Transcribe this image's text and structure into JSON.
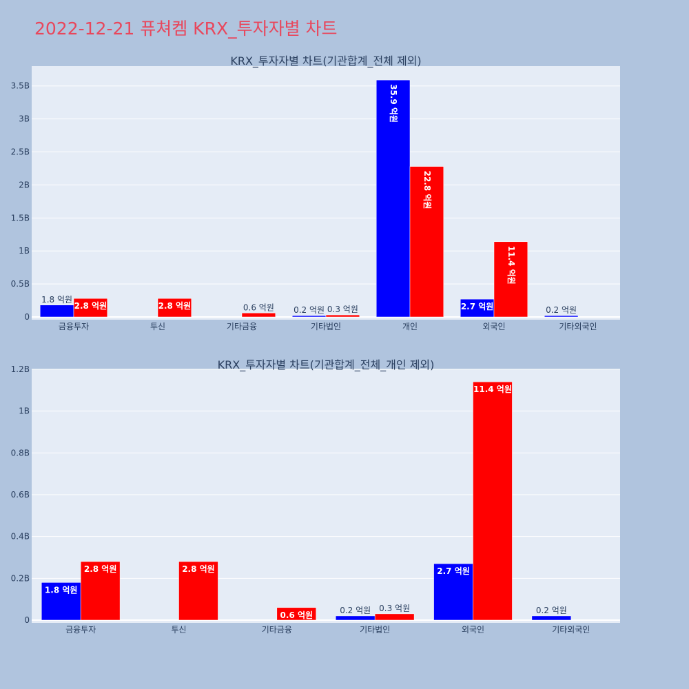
{
  "page_title": "2022-12-21 퓨쳐켐 KRX_투자자별 차트",
  "colors": {
    "background": "#b0c4de",
    "plot_bg": "#e5ecf6",
    "title": "#e8475c",
    "series_a": "#0000ff",
    "series_b": "#ff0000"
  },
  "chart_data": [
    {
      "type": "bar",
      "title": "KRX_투자자별 차트(기관합계_전체 제외)",
      "categories": [
        "금융투자",
        "투신",
        "기타금융",
        "기타법인",
        "개인",
        "외국인",
        "기타외국인"
      ],
      "ylim": [
        0,
        3.8
      ],
      "yticks": [
        0,
        0.5,
        1,
        1.5,
        2,
        2.5,
        3,
        3.5
      ],
      "ytick_labels": [
        "0",
        "0.5B",
        "1B",
        "1.5B",
        "2B",
        "2.5B",
        "3B",
        "3.5B"
      ],
      "grid": true,
      "series": [
        {
          "color": "#0000ff",
          "values": [
            0.18,
            null,
            null,
            0.02,
            3.59,
            0.27,
            0.02
          ],
          "labels": [
            "1.8 억원",
            "",
            "",
            "0.2 억원",
            "35.9 억원",
            "2.7 억원",
            "0.2 억원"
          ]
        },
        {
          "color": "#ff0000",
          "values": [
            0.28,
            0.28,
            0.06,
            0.03,
            2.28,
            1.14,
            null
          ],
          "labels": [
            "2.8 억원",
            "2.8 억원",
            "0.6 억원",
            "0.3 억원",
            "22.8 억원",
            "11.4 억원",
            ""
          ]
        }
      ]
    },
    {
      "type": "bar",
      "title": "KRX_투자자별 차트(기관합계_전체_개인 제외)",
      "categories": [
        "금융투자",
        "투신",
        "기타금융",
        "기타법인",
        "외국인",
        "기타외국인"
      ],
      "ylim": [
        0,
        1.2
      ],
      "yticks": [
        0,
        0.2,
        0.4,
        0.6,
        0.8,
        1,
        1.2
      ],
      "ytick_labels": [
        "0",
        "0.2B",
        "0.4B",
        "0.6B",
        "0.8B",
        "1B",
        "1.2B"
      ],
      "grid": true,
      "series": [
        {
          "color": "#0000ff",
          "values": [
            0.18,
            null,
            null,
            0.02,
            0.27,
            0.02
          ],
          "labels": [
            "1.8 억원",
            "",
            "",
            "0.2 억원",
            "2.7 억원",
            "0.2 억원"
          ]
        },
        {
          "color": "#ff0000",
          "values": [
            0.28,
            0.28,
            0.06,
            0.03,
            1.14,
            null
          ],
          "labels": [
            "2.8 억원",
            "2.8 억원",
            "0.6 억원",
            "0.3 억원",
            "11.4 억원",
            ""
          ]
        }
      ]
    }
  ]
}
